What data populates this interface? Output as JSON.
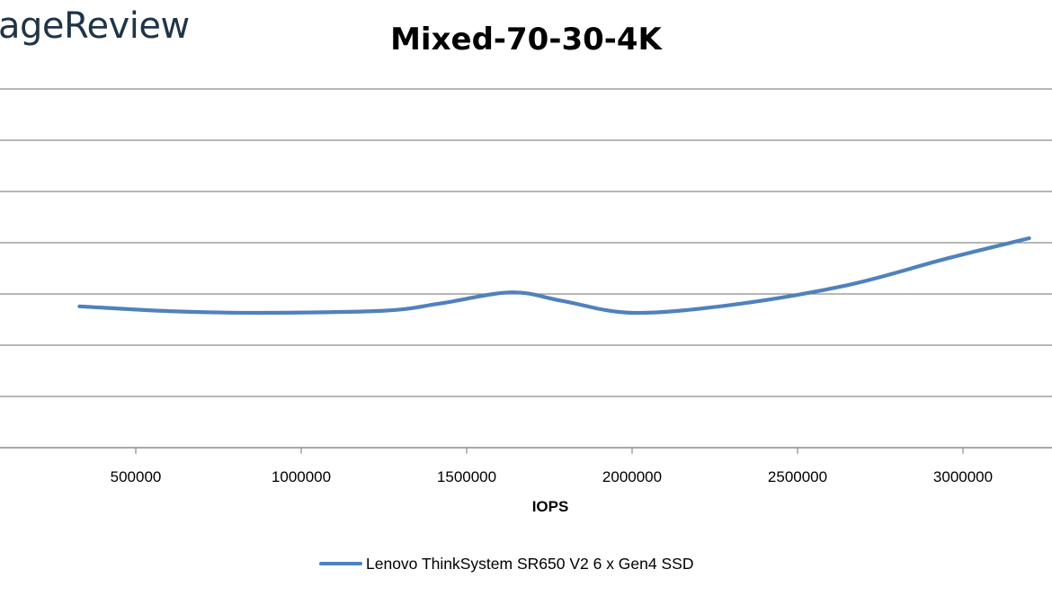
{
  "logo": {
    "text": "ageReview"
  },
  "chart_data": {
    "type": "line",
    "title": "Mixed-70-30-4K",
    "xlabel": "IOPS",
    "ylabel": "",
    "xlim": [
      0,
      3250000
    ],
    "x_ticks": [
      500000,
      1000000,
      1500000,
      2000000,
      2500000,
      3000000
    ],
    "x_tick_labels": [
      "500000",
      "1000000",
      "1500000",
      "2000000",
      "2500000",
      "3000000"
    ],
    "y_gridlines": 7,
    "grid": true,
    "legend_position": "bottom",
    "smooth": true,
    "series": [
      {
        "name": "Lenovo ThinkSystem SR650 V2 6 x Gen4 SSD",
        "color": "#4f81bd",
        "points": [
          [
            330000,
            0.394
          ],
          [
            620000,
            0.38
          ],
          [
            880000,
            0.376
          ],
          [
            1250000,
            0.382
          ],
          [
            1420000,
            0.402
          ],
          [
            1635000,
            0.433
          ],
          [
            1790000,
            0.409
          ],
          [
            2000000,
            0.376
          ],
          [
            2300000,
            0.398
          ],
          [
            2650000,
            0.453
          ],
          [
            2950000,
            0.527
          ],
          [
            3200000,
            0.584
          ]
        ]
      }
    ]
  }
}
